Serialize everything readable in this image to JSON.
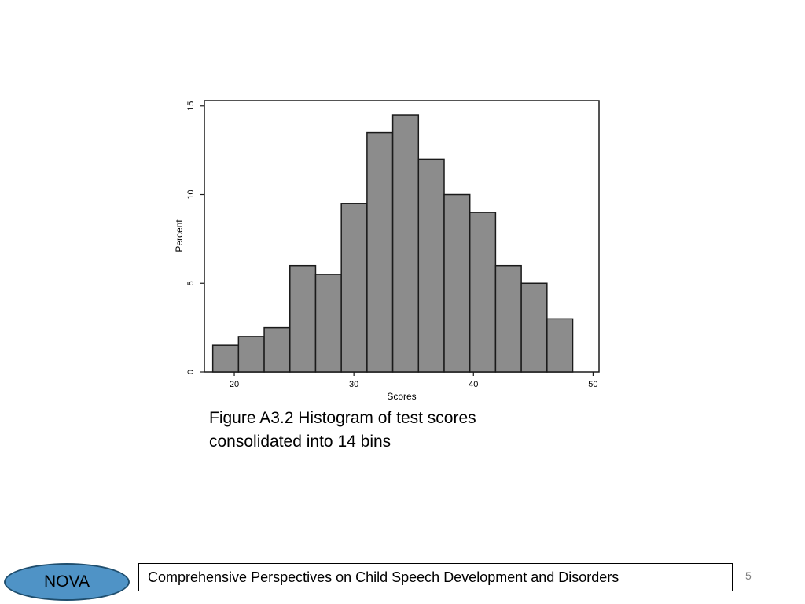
{
  "chart_data": {
    "type": "bar",
    "subtype": "histogram",
    "title": "",
    "xlabel": "Scores",
    "ylabel": "Percent",
    "xlim": [
      17.5,
      50.5
    ],
    "ylim": [
      0,
      15.3
    ],
    "x_ticks": [
      20,
      30,
      40,
      50
    ],
    "y_ticks": [
      0,
      5,
      10,
      15
    ],
    "bin_edges": [
      18.2,
      20.35,
      22.5,
      24.65,
      26.8,
      28.95,
      31.1,
      33.25,
      35.4,
      37.55,
      39.7,
      41.85,
      44.0,
      46.15,
      48.3
    ],
    "values": [
      1.5,
      2.0,
      2.5,
      6.0,
      5.5,
      9.5,
      13.5,
      14.5,
      12.0,
      10.0,
      9.0,
      6.0,
      5.0,
      3.0
    ],
    "bar_color": "#8c8c8c",
    "bar_edge_color": "#1a1a1a",
    "grid": false,
    "legend": "none"
  },
  "caption": {
    "line1": "Figure A3.2 Histogram of test scores",
    "line2": "consolidated into 14 bins"
  },
  "footer": {
    "logo_text": "NOVA",
    "logo_color": "#4f93c6",
    "title": "Comprehensive Perspectives on Child Speech Development and Disorders",
    "page_number": "5"
  }
}
